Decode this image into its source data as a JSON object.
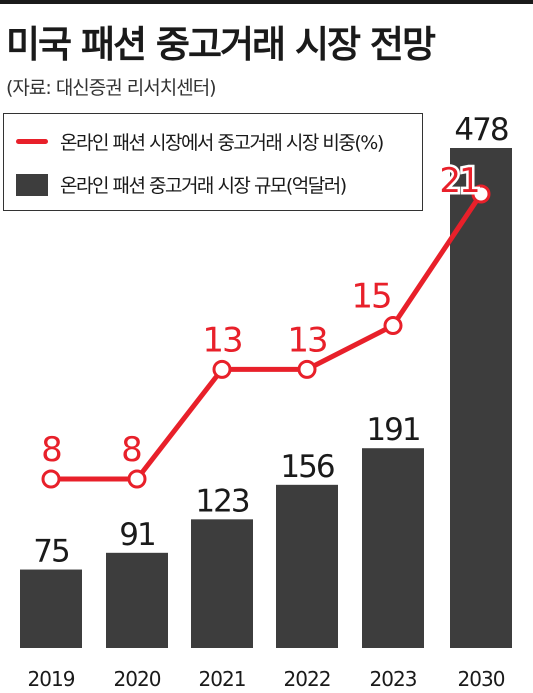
{
  "title": "미국 패션 중고거래 시장 전망",
  "source": "(자료: 대신증권 리서치센터)",
  "colors": {
    "line": "#e8202a",
    "bar": "#3d3d3d",
    "text": "#1a1a1a"
  },
  "chart_data": {
    "type": "bar",
    "categories": [
      "2019",
      "2020",
      "2021",
      "2022",
      "2023",
      "2030"
    ],
    "series": [
      {
        "name": "온라인 패션 중고거래 시장 규모(억달러)",
        "type": "bar",
        "values": [
          75,
          91,
          123,
          156,
          191,
          478
        ]
      },
      {
        "name": "온라인 패션 시장에서 중고거래 시장 비중(%)",
        "type": "line",
        "values": [
          8,
          8,
          13,
          13,
          15,
          21
        ]
      }
    ],
    "legend_position": "top-left",
    "grid": false
  }
}
